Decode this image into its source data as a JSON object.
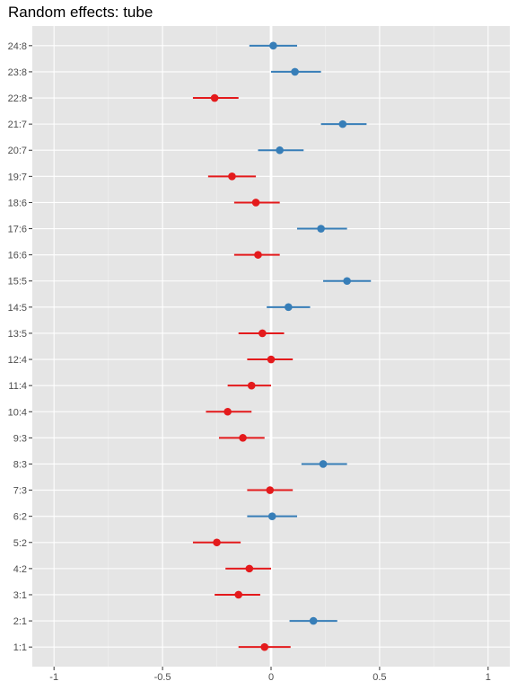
{
  "chart_data": {
    "type": "forest",
    "title": "Random effects: tube",
    "xlabel": "",
    "ylabel": "",
    "xlim": [
      -1.1,
      1.1
    ],
    "x_ticks": [
      -1,
      -0.5,
      0,
      0.5,
      1
    ],
    "x_tick_labels": [
      "-1",
      "-0.5",
      "0",
      "0.5",
      "1"
    ],
    "grid": true,
    "reference_line": 0,
    "colors": {
      "positive": "#377EB8",
      "negative": "#E41A1C"
    },
    "categories": [
      "24:8",
      "23:8",
      "22:8",
      "21:7",
      "20:7",
      "19:7",
      "18:6",
      "17:6",
      "16:6",
      "15:5",
      "14:5",
      "13:5",
      "12:4",
      "11:4",
      "10:4",
      "9:3",
      "8:3",
      "7:3",
      "6:2",
      "5:2",
      "4:2",
      "3:1",
      "2:1",
      "1:1"
    ],
    "estimates": [
      0.01,
      0.11,
      -0.26,
      0.33,
      0.04,
      -0.18,
      -0.07,
      0.23,
      -0.06,
      0.35,
      0.08,
      -0.04,
      0.0,
      -0.09,
      -0.2,
      -0.13,
      0.24,
      -0.005,
      0.005,
      -0.25,
      -0.1,
      -0.15,
      0.195,
      -0.03
    ],
    "lower": [
      -0.1,
      0.0,
      -0.36,
      0.23,
      -0.06,
      -0.29,
      -0.17,
      0.12,
      -0.17,
      0.24,
      -0.02,
      -0.15,
      -0.11,
      -0.2,
      -0.3,
      -0.24,
      0.14,
      -0.11,
      -0.11,
      -0.36,
      -0.21,
      -0.26,
      0.085,
      -0.15
    ],
    "upper": [
      0.12,
      0.23,
      -0.15,
      0.44,
      0.15,
      -0.07,
      0.04,
      0.35,
      0.04,
      0.46,
      0.18,
      0.06,
      0.1,
      0.0,
      -0.09,
      -0.03,
      0.35,
      0.1,
      0.12,
      -0.14,
      0.0,
      -0.05,
      0.305,
      0.09
    ],
    "effect_sign": [
      "positive",
      "positive",
      "negative",
      "positive",
      "positive",
      "negative",
      "negative",
      "positive",
      "negative",
      "positive",
      "positive",
      "negative",
      "negative",
      "negative",
      "negative",
      "negative",
      "positive",
      "negative",
      "positive",
      "negative",
      "negative",
      "negative",
      "positive",
      "negative"
    ]
  }
}
